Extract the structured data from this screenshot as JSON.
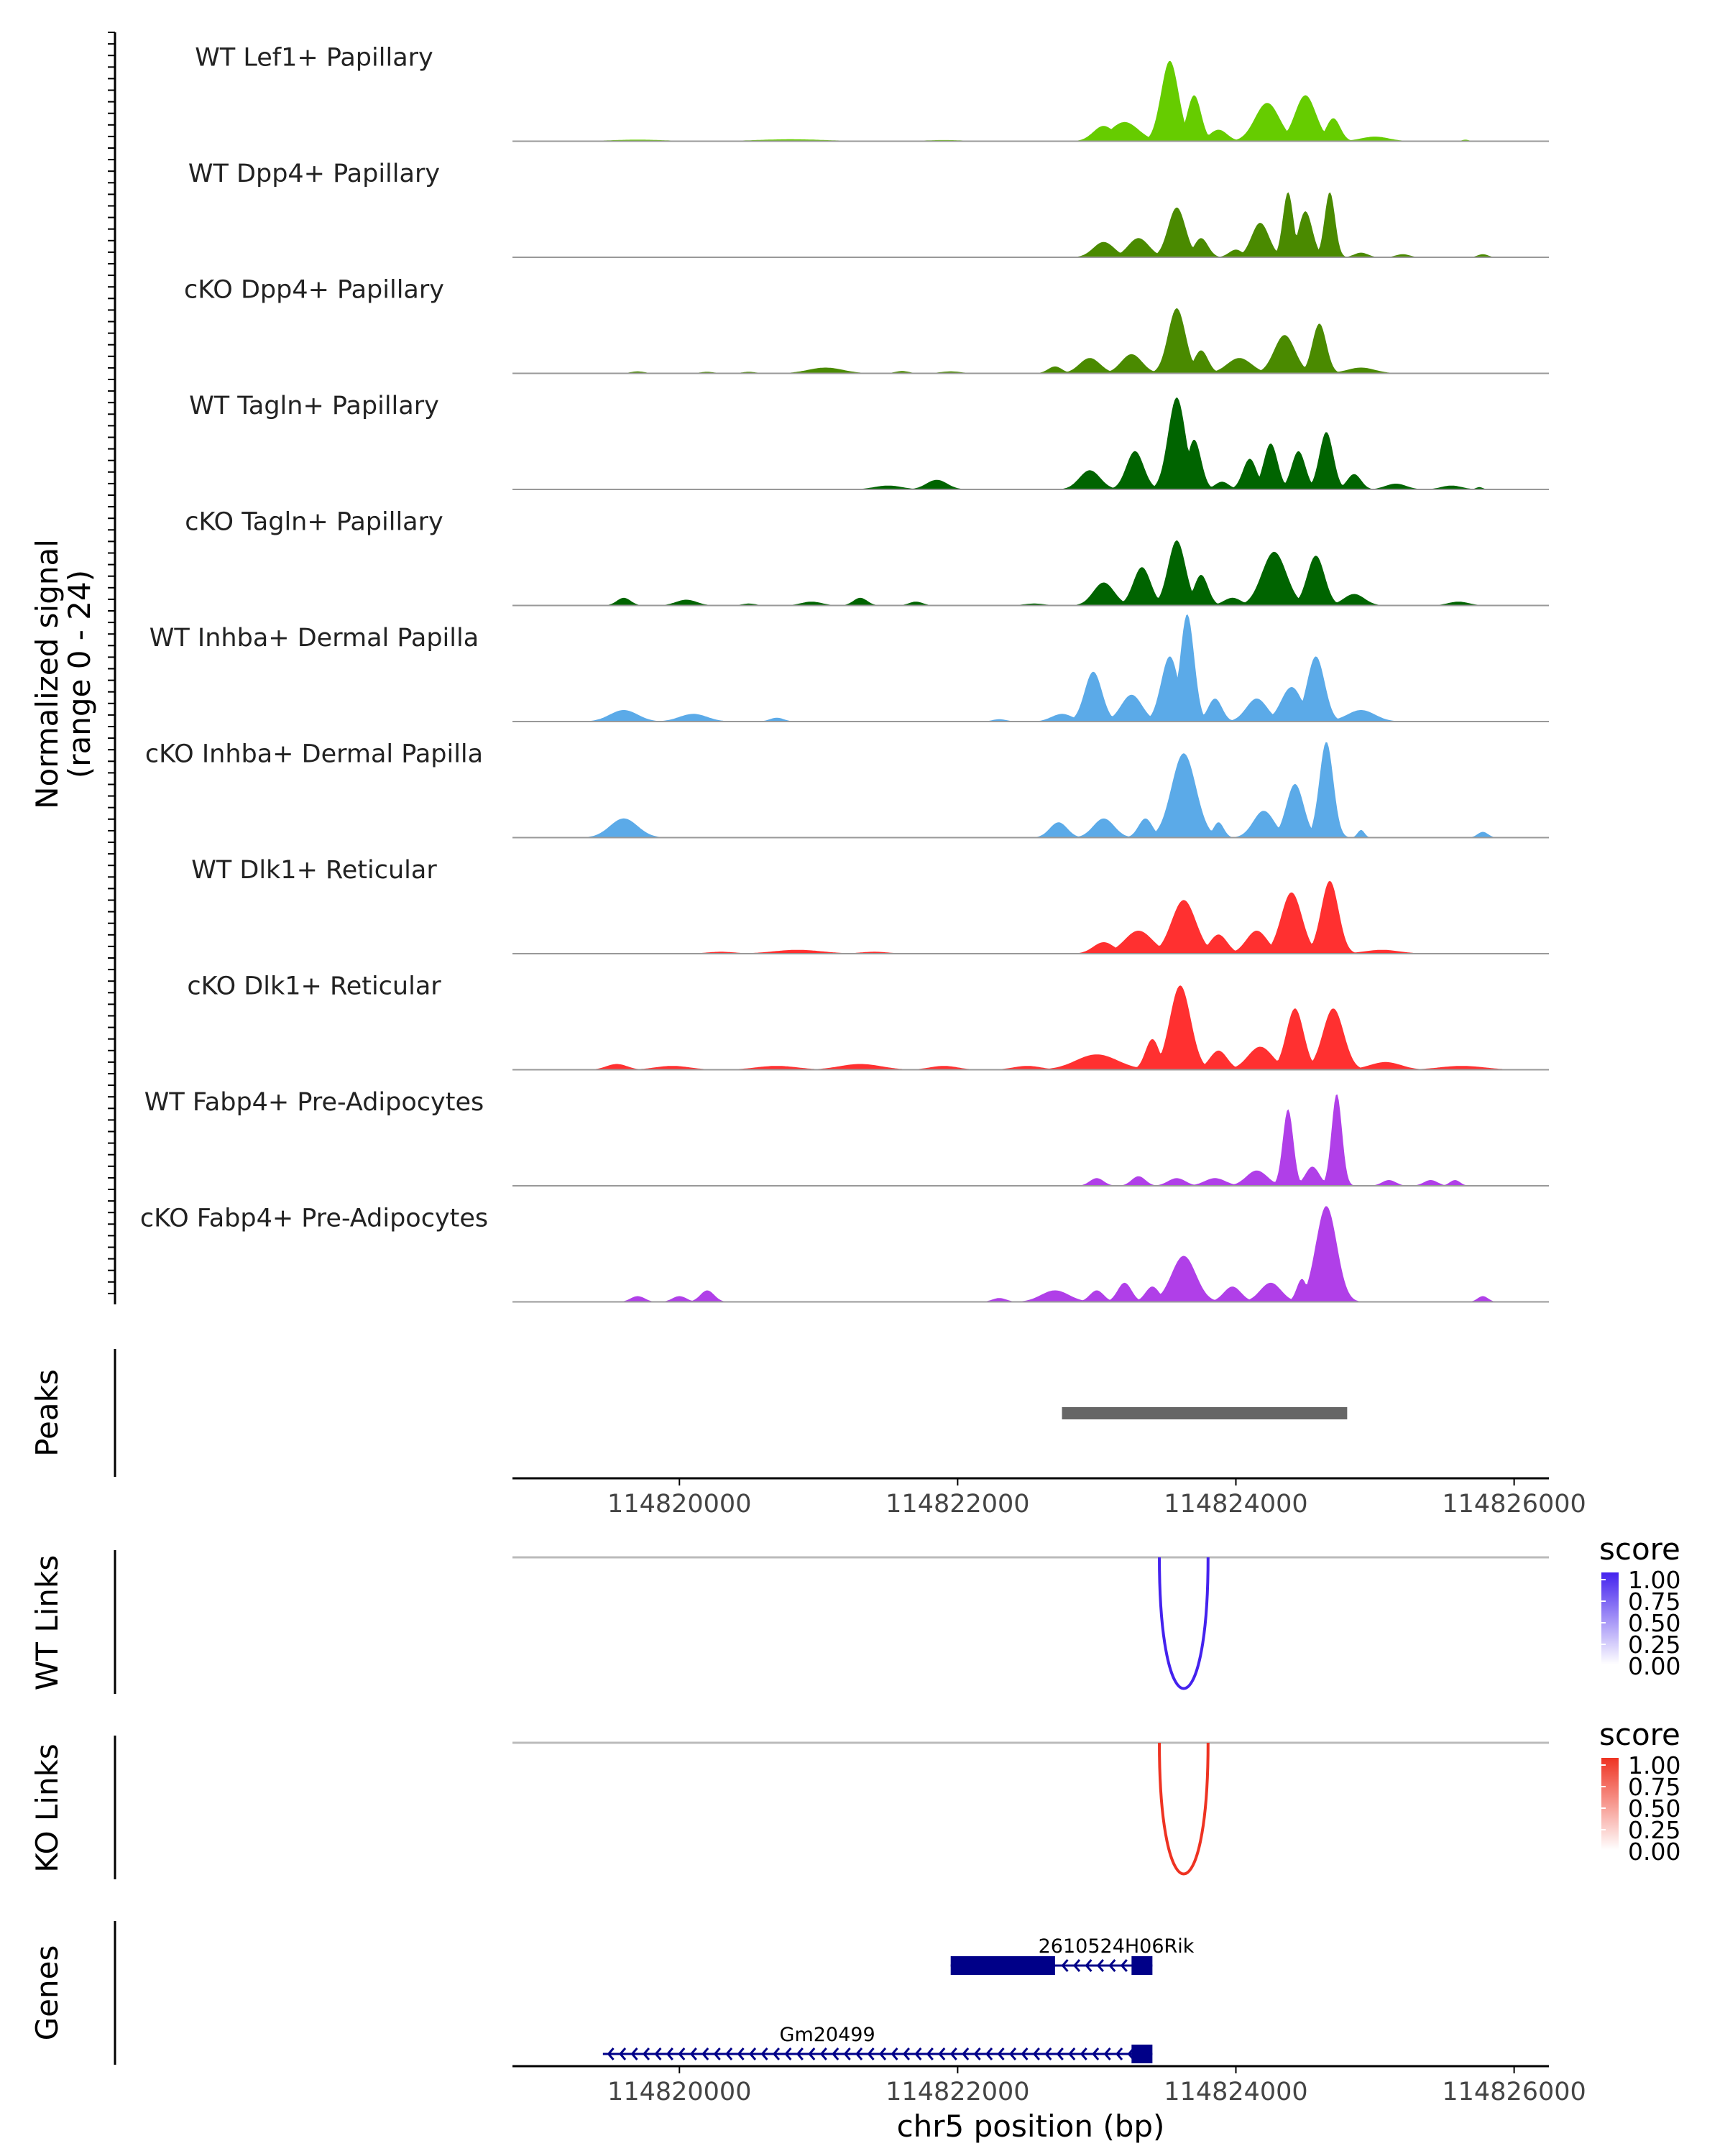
{
  "chart_data": {
    "type": "area",
    "title": "",
    "region": {
      "chrom": "chr5",
      "start": 114818800,
      "end": 114826250
    },
    "xlabel": "chr5 position (bp)",
    "x_ticks": [
      114820000,
      114822000,
      114824000,
      114826000
    ],
    "x_tick_labels": [
      "114820000",
      "114822000",
      "114824000",
      "114826000"
    ],
    "coverage": {
      "ylabel": "Normalized signal",
      "ylabel_range": "(range 0 - 24)",
      "ylim": [
        0,
        24
      ],
      "tracks": [
        {
          "name": "WT Lef1+ Papillary",
          "color": "#66CC00",
          "bumps": [
            [
              114819300,
              114820100,
              0.4
            ],
            [
              114820300,
              114821300,
              0.5
            ],
            [
              114821600,
              114822200,
              0.3
            ],
            [
              114822900,
              114823200,
              4
            ],
            [
              114823000,
              114823400,
              5
            ],
            [
              114823400,
              114823650,
              21
            ],
            [
              114823600,
              114823800,
              12
            ],
            [
              114823750,
              114824000,
              3
            ],
            [
              114824050,
              114824400,
              10
            ],
            [
              114824350,
              114824650,
              12
            ],
            [
              114824600,
              114824800,
              6
            ],
            [
              114824800,
              114825200,
              1.2
            ],
            [
              114825600,
              114825700,
              0.4
            ]
          ]
        },
        {
          "name": "WT Dpp4+ Papillary",
          "color": "#4A8A00",
          "bumps": [
            [
              114822900,
              114823200,
              4
            ],
            [
              114823150,
              114823450,
              5
            ],
            [
              114823450,
              114823700,
              13
            ],
            [
              114823650,
              114823850,
              5
            ],
            [
              114823900,
              114824100,
              2
            ],
            [
              114824050,
              114824300,
              9
            ],
            [
              114824300,
              114824450,
              17
            ],
            [
              114824400,
              114824600,
              12
            ],
            [
              114824600,
              114824750,
              17
            ],
            [
              114824800,
              114825000,
              1.2
            ],
            [
              114825100,
              114825300,
              0.8
            ],
            [
              114825700,
              114825850,
              0.8
            ]
          ]
        },
        {
          "name": "cKO Dpp4+ Papillary",
          "color": "#4A8A00",
          "bumps": [
            [
              114819600,
              114819800,
              0.5
            ],
            [
              114820100,
              114820300,
              0.4
            ],
            [
              114820400,
              114820600,
              0.4
            ],
            [
              114820800,
              114821300,
              1.5
            ],
            [
              114821500,
              114821700,
              0.6
            ],
            [
              114821800,
              114822100,
              0.5
            ],
            [
              114822600,
              114822800,
              1.8
            ],
            [
              114822800,
              114823100,
              4
            ],
            [
              114823100,
              114823400,
              5
            ],
            [
              114823450,
              114823700,
              17
            ],
            [
              114823650,
              114823850,
              6
            ],
            [
              114823850,
              114824200,
              4
            ],
            [
              114824200,
              114824500,
              10
            ],
            [
              114824500,
              114824700,
              13
            ],
            [
              114824700,
              114825100,
              1.5
            ]
          ]
        },
        {
          "name": "WT Tagln+ Papillary",
          "color": "#006400",
          "bumps": [
            [
              114821300,
              114821700,
              1
            ],
            [
              114821700,
              114822000,
              2.5
            ],
            [
              114822800,
              114823100,
              5
            ],
            [
              114823150,
              114823400,
              10
            ],
            [
              114823450,
              114823700,
              24
            ],
            [
              114823600,
              114823800,
              13
            ],
            [
              114823800,
              114824000,
              2
            ],
            [
              114824000,
              114824200,
              8
            ],
            [
              114824150,
              114824350,
              12
            ],
            [
              114824350,
              114824550,
              10
            ],
            [
              114824550,
              114824750,
              15
            ],
            [
              114824750,
              114824950,
              4
            ],
            [
              114825000,
              114825300,
              1.5
            ],
            [
              114825400,
              114825700,
              1
            ],
            [
              114825700,
              114825800,
              0.6
            ]
          ]
        },
        {
          "name": "cKO Tagln+ Papillary",
          "color": "#006400",
          "bumps": [
            [
              114819500,
              114819700,
              2
            ],
            [
              114819900,
              114820200,
              1.5
            ],
            [
              114820400,
              114820600,
              0.5
            ],
            [
              114820800,
              114821100,
              1
            ],
            [
              114821200,
              114821400,
              2
            ],
            [
              114821600,
              114821800,
              1
            ],
            [
              114822400,
              114822700,
              0.5
            ],
            [
              114822900,
              114823200,
              6
            ],
            [
              114823200,
              114823450,
              10
            ],
            [
              114823450,
              114823700,
              17
            ],
            [
              114823650,
              114823850,
              8
            ],
            [
              114823850,
              114824100,
              2
            ],
            [
              114824100,
              114824450,
              14
            ],
            [
              114824450,
              114824700,
              13
            ],
            [
              114824700,
              114825000,
              3
            ],
            [
              114825450,
              114825750,
              1
            ]
          ]
        },
        {
          "name": "WT Inhba+ Dermal Papilla",
          "color": "#5BAAE8",
          "bumps": [
            [
              114819400,
              114819800,
              3
            ],
            [
              114819900,
              114820300,
              2
            ],
            [
              114820600,
              114820800,
              1
            ],
            [
              114822200,
              114822400,
              0.6
            ],
            [
              114822600,
              114822900,
              2
            ],
            [
              114822850,
              114823100,
              13
            ],
            [
              114823100,
              114823400,
              7
            ],
            [
              114823400,
              114823650,
              17
            ],
            [
              114823550,
              114823750,
              28
            ],
            [
              114823750,
              114823950,
              6
            ],
            [
              114824000,
              114824300,
              6
            ],
            [
              114824250,
              114824550,
              9
            ],
            [
              114824450,
              114824700,
              17
            ],
            [
              114824700,
              114825100,
              3
            ]
          ]
        },
        {
          "name": "cKO Inhba+ Dermal Papilla",
          "color": "#5BAAE8",
          "bumps": [
            [
              114819400,
              114819800,
              5
            ],
            [
              114822600,
              114822850,
              4
            ],
            [
              114822900,
              114823200,
              5
            ],
            [
              114823250,
              114823450,
              5
            ],
            [
              114823450,
              114823800,
              22
            ],
            [
              114823800,
              114823950,
              4
            ],
            [
              114824050,
              114824350,
              7
            ],
            [
              114824300,
              114824550,
              14
            ],
            [
              114824550,
              114824750,
              25
            ],
            [
              114824850,
              114824950,
              2
            ],
            [
              114825700,
              114825850,
              1.5
            ]
          ]
        },
        {
          "name": "WT Dlk1+ Reticular",
          "color": "#FF3030",
          "bumps": [
            [
              114820100,
              114820500,
              0.5
            ],
            [
              114820500,
              114821200,
              1
            ],
            [
              114821200,
              114821600,
              0.5
            ],
            [
              114822900,
              114823200,
              3
            ],
            [
              114823100,
              114823500,
              6
            ],
            [
              114823450,
              114823800,
              14
            ],
            [
              114823750,
              114824000,
              5
            ],
            [
              114824000,
              114824300,
              6
            ],
            [
              114824250,
              114824550,
              16
            ],
            [
              114824550,
              114824800,
              19
            ],
            [
              114824800,
              114825300,
              1
            ]
          ]
        },
        {
          "name": "cKO Dlk1+ Reticular",
          "color": "#FF3030",
          "bumps": [
            [
              114819400,
              114819700,
              1.5
            ],
            [
              114819700,
              114820200,
              1
            ],
            [
              114820400,
              114821000,
              1
            ],
            [
              114821000,
              114821600,
              1.5
            ],
            [
              114821700,
              114822100,
              1
            ],
            [
              114822300,
              114822700,
              1
            ],
            [
              114822700,
              114823300,
              4
            ],
            [
              114823300,
              114823500,
              8
            ],
            [
              114823450,
              114823750,
              22
            ],
            [
              114823750,
              114824000,
              5
            ],
            [
              114824000,
              114824350,
              6
            ],
            [
              114824300,
              114824550,
              16
            ],
            [
              114824550,
              114824850,
              16
            ],
            [
              114824850,
              114825300,
              2
            ],
            [
              114825300,
              114825950,
              1
            ]
          ]
        },
        {
          "name": "WT Fabp4+ Pre-Adipocytes",
          "color": "#B03FE8",
          "bumps": [
            [
              114822900,
              114823100,
              2
            ],
            [
              114823200,
              114823400,
              2.5
            ],
            [
              114823450,
              114823700,
              2
            ],
            [
              114823700,
              114824000,
              2
            ],
            [
              114824000,
              114824300,
              4
            ],
            [
              114824300,
              114824450,
              20
            ],
            [
              114824450,
              114824650,
              5
            ],
            [
              114824650,
              114824800,
              24
            ],
            [
              114825000,
              114825200,
              1.5
            ],
            [
              114825300,
              114825500,
              1.5
            ],
            [
              114825500,
              114825650,
              1.5
            ]
          ]
        },
        {
          "name": "cKO Fabp4+ Pre-Adipocytes",
          "color": "#B03FE8",
          "bumps": [
            [
              114819600,
              114819800,
              1.5
            ],
            [
              114819900,
              114820100,
              1.5
            ],
            [
              114820100,
              114820300,
              3
            ],
            [
              114822200,
              114822400,
              1
            ],
            [
              114822500,
              114822900,
              3
            ],
            [
              114822900,
              114823100,
              3
            ],
            [
              114823100,
              114823300,
              5
            ],
            [
              114823300,
              114823500,
              4
            ],
            [
              114823450,
              114823800,
              12
            ],
            [
              114823850,
              114824100,
              4
            ],
            [
              114824100,
              114824400,
              5
            ],
            [
              114824400,
              114824550,
              6
            ],
            [
              114824500,
              114824800,
              25
            ],
            [
              114825700,
              114825850,
              1.5
            ]
          ]
        }
      ]
    },
    "peaks": {
      "label": "Peaks",
      "regions": [
        [
          114822750,
          114824800
        ]
      ],
      "color": "#666666"
    },
    "links": [
      {
        "label": "WT Links",
        "start": 114823450,
        "end": 114823800,
        "score": 1.0,
        "color": "#4422EE",
        "legend_title": "score",
        "legend_ticks": [
          "1.00",
          "0.75",
          "0.50",
          "0.25",
          "0.00"
        ]
      },
      {
        "label": "KO Links",
        "start": 114823450,
        "end": 114823800,
        "score": 1.0,
        "color": "#EE3322",
        "legend_title": "score",
        "legend_ticks": [
          "1.00",
          "0.75",
          "0.50",
          "0.25",
          "0.00"
        ]
      }
    ],
    "genes": {
      "label": "Genes",
      "color": "#000088",
      "items": [
        {
          "name": "2610524H06Rik",
          "strand": "-",
          "start": 114821950,
          "end": 114823400,
          "exons": [
            [
              114821950,
              114822700
            ],
            [
              114823250,
              114823400
            ]
          ]
        },
        {
          "name": "Gm20499",
          "strand": "-",
          "start": 114819450,
          "end": 114823400,
          "exons": [
            [
              114823250,
              114823400
            ]
          ]
        }
      ]
    }
  }
}
